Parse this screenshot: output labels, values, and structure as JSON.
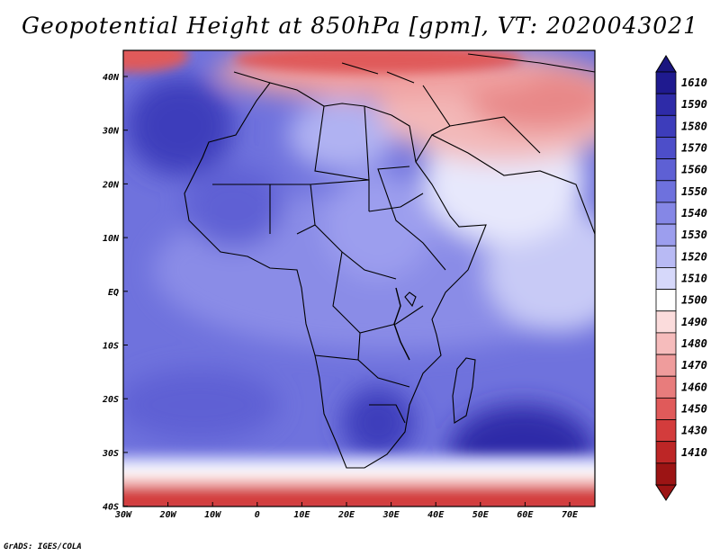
{
  "title": "Geopotential Height at 850hPa [gpm], VT: 2020043021",
  "credit": "GrADS: IGES/COLA",
  "x_ticks": [
    "30W",
    "20W",
    "10W",
    "0",
    "10E",
    "20E",
    "30E",
    "40E",
    "50E",
    "60E",
    "70E"
  ],
  "y_ticks": [
    "40N",
    "30N",
    "20N",
    "10N",
    "EQ",
    "10S",
    "20S",
    "30S",
    "40S"
  ],
  "colorbar": {
    "levels": [
      "1610",
      "1590",
      "1580",
      "1570",
      "1560",
      "1550",
      "1540",
      "1530",
      "1520",
      "1510",
      "1500",
      "1490",
      "1480",
      "1470",
      "1460",
      "1450",
      "1430",
      "1410"
    ],
    "colors": [
      "#1f1a8f",
      "#2e2ba8",
      "#3d3dbb",
      "#4d4ec9",
      "#5e60d4",
      "#6e71dd",
      "#8587e6",
      "#9c9eee",
      "#b8baf4",
      "#d6d8fa",
      "#ffffff",
      "#fbdcdc",
      "#f6bcbc",
      "#ef9c9c",
      "#e87c7c",
      "#e05a5a",
      "#d33c3c",
      "#bd2626",
      "#9c1414"
    ]
  }
}
